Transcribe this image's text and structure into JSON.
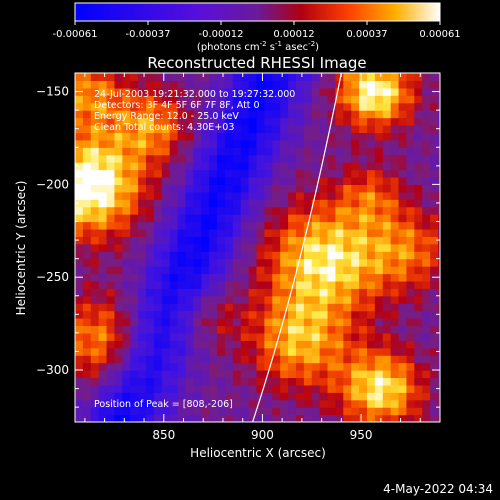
{
  "chart_data": {
    "type": "heatmap",
    "title": "Reconstructed RHESSI Image",
    "xlabel": "Heliocentric X (arcsec)",
    "ylabel": "Heliocentric Y (arcsec)",
    "xlim": [
      805,
      990
    ],
    "ylim": [
      -328,
      -140
    ],
    "x_ticks": [
      850,
      900,
      950
    ],
    "y_ticks": [
      -150,
      -200,
      -250,
      -300
    ],
    "colorbar": {
      "ticks": [
        "-0.00061",
        "-0.00037",
        "-0.00012",
        "0.00012",
        "0.00037",
        "0.00061"
      ],
      "range": [
        -0.00061,
        0.00061
      ],
      "label": "(photons cm",
      "label_sup1": "-2",
      "label_mid1": " s",
      "label_sup2": "-1",
      "label_mid2": " asec",
      "label_sup3": "-2",
      "label_end": ")"
    },
    "info_lines": [
      "24-Jul-2003 19:21:32.000 to 19:27:32.000",
      "Detectors: 3F 4F 5F 6F 7F 8F, Att 0",
      "Energy Range: 12.0 - 25.0 keV",
      "Clean     Total counts: 4.30E+03"
    ],
    "peak_text": "Position of Peak = [808,-206]",
    "limb_curve": [
      [
        895,
        -328
      ],
      [
        910,
        -280
      ],
      [
        925,
        -220
      ],
      [
        940,
        -140
      ]
    ],
    "colormap_colors": [
      "#0000ff",
      "#6a10d0",
      "#8020a8",
      "#c00000",
      "#ff5000",
      "#ffa000",
      "#ffff80",
      "#ffffff"
    ],
    "grid": false
  },
  "footer": {
    "date": "4-May-2022 04:34"
  }
}
